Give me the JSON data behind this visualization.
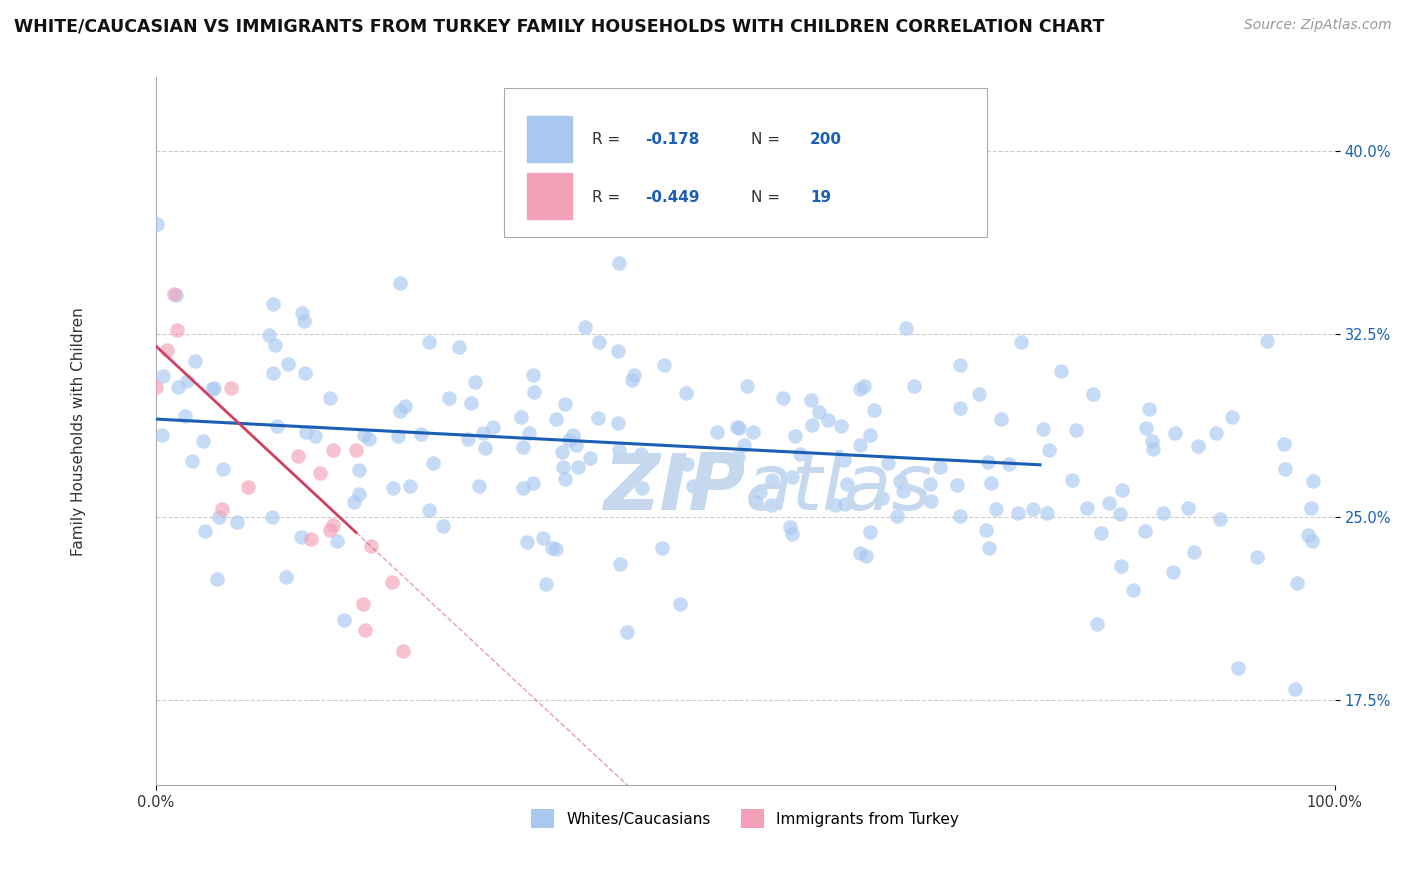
{
  "title": "WHITE/CAUCASIAN VS IMMIGRANTS FROM TURKEY FAMILY HOUSEHOLDS WITH CHILDREN CORRELATION CHART",
  "source_text": "Source: ZipAtlas.com",
  "ylabel": "Family Households with Children",
  "xlim": [
    0,
    100
  ],
  "ylim": [
    14.0,
    43.0
  ],
  "yticks": [
    17.5,
    25.0,
    32.5,
    40.0
  ],
  "xticks": [
    0,
    100
  ],
  "xtick_labels": [
    "0.0%",
    "100.0%"
  ],
  "ytick_labels": [
    "17.5%",
    "25.0%",
    "32.5%",
    "40.0%"
  ],
  "grid_color": "#cccccc",
  "background_color": "#ffffff",
  "blue_dot_color": "#a8c8f0",
  "pink_dot_color": "#f4a0b8",
  "blue_line_color": "#1a5fb4",
  "pink_line_color": "#d04060",
  "watermark_color": "#c5d8ee",
  "blue_R": -0.178,
  "blue_N": 200,
  "pink_R": -0.449,
  "pink_N": 19,
  "legend_v1": "-0.178",
  "legend_nv1": "200",
  "legend_v2": "-0.449",
  "legend_nv2": "19",
  "legend_label1": "Whites/Caucasians",
  "legend_label2": "Immigrants from Turkey",
  "dot_size": 110,
  "dot_alpha": 0.65,
  "title_fontsize": 12.5,
  "axis_label_fontsize": 11,
  "tick_fontsize": 10.5,
  "source_fontsize": 10
}
